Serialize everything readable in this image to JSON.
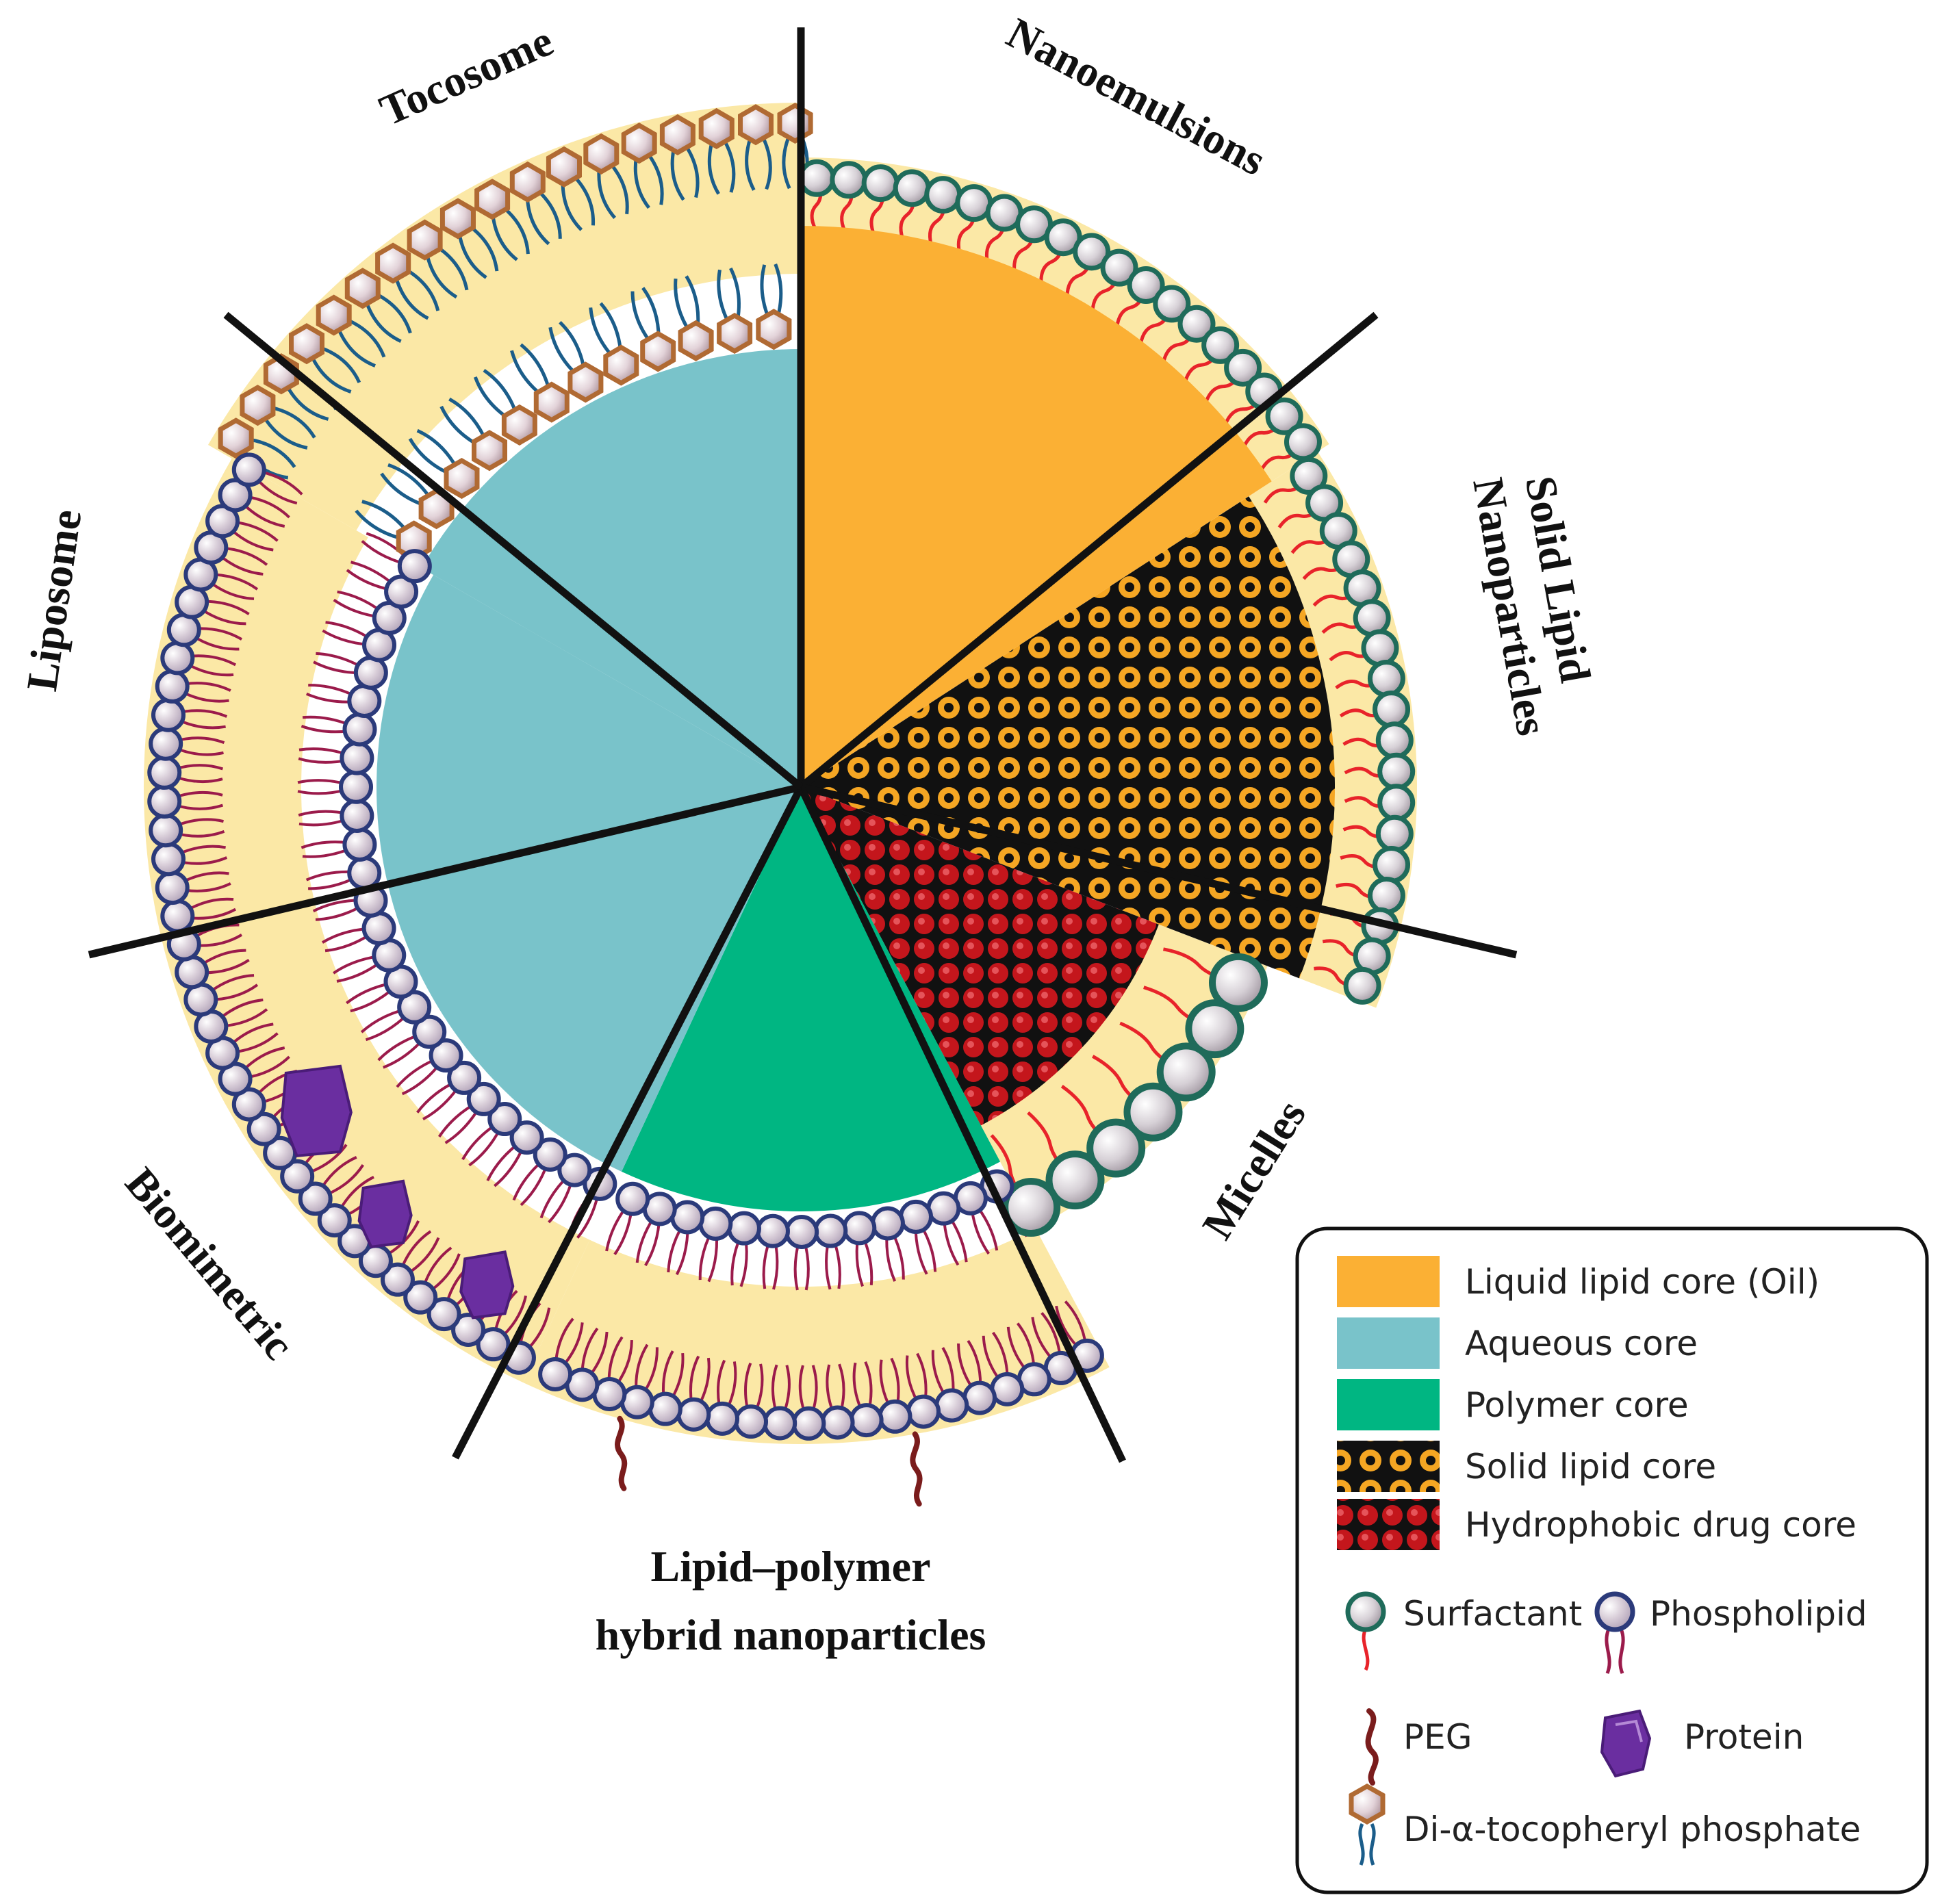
{
  "segments": {
    "tocosome": "Tocosome",
    "nanoemulsions": "Nanoemulsions",
    "sln_line1": "Solid Lipid",
    "sln_line2": "Nanoparticles",
    "liposome": "Liposome",
    "micelles": "Micelles",
    "biomimetric": "Biomimetric",
    "lphn_line1": "Lipid–polymer",
    "lphn_line2": "hybrid nanoparticles"
  },
  "legend": {
    "liquid_lipid_core": "Liquid lipid core (Oil)",
    "aqueous_core": "Aqueous core",
    "polymer_core": "Polymer core",
    "solid_lipid_core": "Solid lipid core",
    "hydrophobic_drug_core": "Hydrophobic drug core",
    "surfactant": "Surfactant",
    "phospholipid": "Phospholipid",
    "peg": "PEG",
    "protein": "Protein",
    "tocopheryl": "Di-α-tocopheryl phosphate"
  },
  "colors": {
    "oil_core": "#fbb034",
    "aqueous_core": "#79c3ca",
    "polymer_core": "#00b682",
    "solid_lipid_pattern_dark": "#111111",
    "solid_lipid_pattern_light": "#f5a623",
    "drug_core_dark": "#c4161c",
    "drug_core_bg": "#111111",
    "lipid_layer": "#fbe8a6",
    "surfactant_head": "#1f6b5a",
    "surfactant_tail": "#e8232a",
    "phospholipid_head": "#2b3a7a",
    "phospholipid_tail": "#9b1b4b",
    "tocopheryl_head": "#b06a33",
    "tocopheryl_tail": "#1b5d8a",
    "protein": "#6a2ea0",
    "peg": "#7a1c1c"
  },
  "icons": {
    "surfactant": "surfactant-icon",
    "phospholipid": "phospholipid-icon",
    "peg": "peg-icon",
    "protein": "protein-icon",
    "tocopheryl": "tocopheryl-icon"
  }
}
